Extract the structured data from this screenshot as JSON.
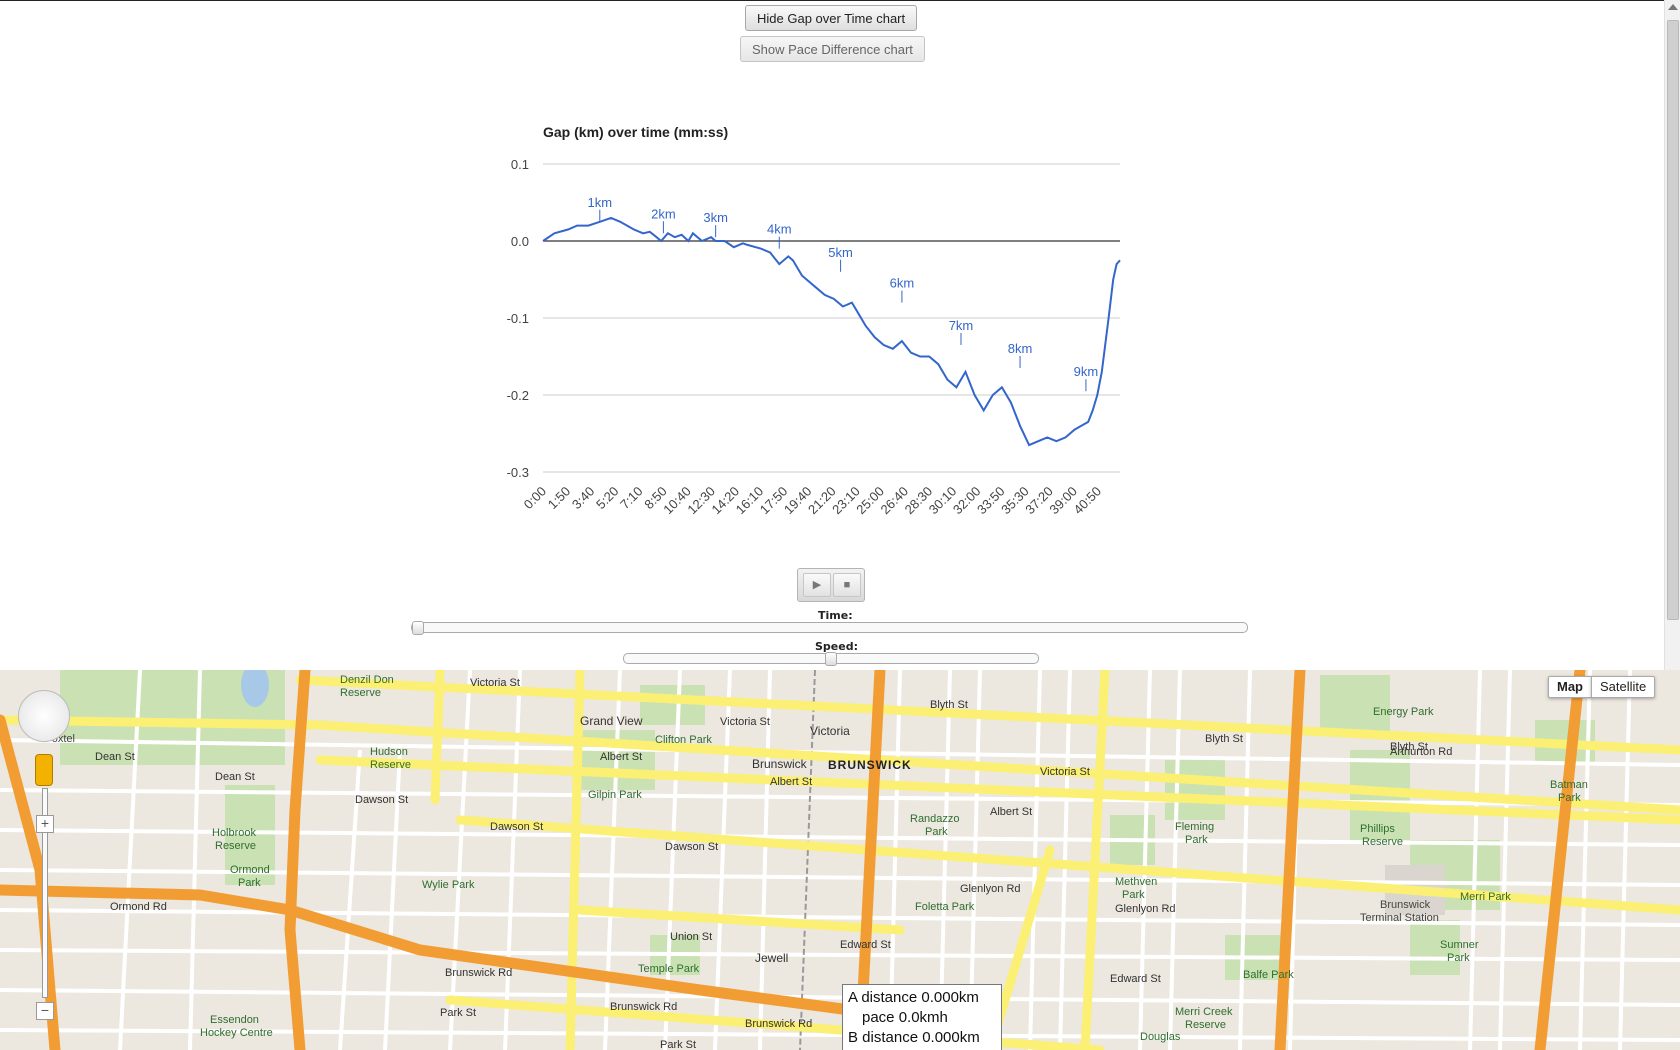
{
  "buttons": {
    "hide_gap": "Hide Gap over Time chart",
    "show_pace": "Show Pace Difference chart"
  },
  "chart_data": {
    "type": "line",
    "title": "Gap (km) over time (mm:ss)",
    "xlabel": "",
    "ylabel": "",
    "ylim": [
      -0.3,
      0.1
    ],
    "yticks": [
      "0.1",
      "0.0",
      "-0.1",
      "-0.2",
      "-0.3"
    ],
    "x_tick_labels": [
      "0:00",
      "1:50",
      "3:40",
      "5:20",
      "7:10",
      "8:50",
      "10:40",
      "12:30",
      "14:20",
      "16:10",
      "17:50",
      "19:40",
      "21:20",
      "23:10",
      "25:00",
      "26:40",
      "28:30",
      "30:10",
      "32:00",
      "33:50",
      "35:30",
      "37:20",
      "39:00",
      "40:50"
    ],
    "x_range_seconds": [
      0,
      2540
    ],
    "series": [
      {
        "x_seconds": [
          0,
          50,
          110,
          150,
          200,
          250,
          300,
          340,
          400,
          440,
          470,
          500,
          520,
          550,
          580,
          610,
          640,
          660,
          700,
          740,
          760,
          800,
          840,
          880,
          900,
          960,
          1000,
          1040,
          1080,
          1100,
          1140,
          1180,
          1200,
          1240,
          1280,
          1320,
          1360,
          1380,
          1420,
          1460,
          1500,
          1540,
          1580,
          1620,
          1660,
          1700,
          1740,
          1780,
          1820,
          1860,
          1900,
          1940,
          1980,
          2020,
          2060,
          2100,
          2140,
          2180,
          2220,
          2260,
          2300,
          2340,
          2370,
          2400,
          2420,
          2440,
          2460,
          2490,
          2510,
          2525,
          2540
        ],
        "y": [
          0.0,
          0.01,
          0.015,
          0.02,
          0.02,
          0.025,
          0.03,
          0.025,
          0.015,
          0.01,
          0.012,
          0.005,
          0.0,
          0.01,
          0.005,
          0.008,
          0.0,
          0.01,
          0.0,
          0.005,
          0.0,
          0.0,
          -0.008,
          -0.003,
          -0.005,
          -0.01,
          -0.015,
          -0.03,
          -0.02,
          -0.025,
          -0.045,
          -0.055,
          -0.06,
          -0.07,
          -0.075,
          -0.085,
          -0.08,
          -0.09,
          -0.11,
          -0.125,
          -0.135,
          -0.14,
          -0.13,
          -0.145,
          -0.15,
          -0.15,
          -0.16,
          -0.18,
          -0.19,
          -0.17,
          -0.2,
          -0.22,
          -0.2,
          -0.19,
          -0.21,
          -0.24,
          -0.265,
          -0.26,
          -0.255,
          -0.26,
          -0.255,
          -0.245,
          -0.24,
          -0.235,
          -0.22,
          -0.2,
          -0.17,
          -0.1,
          -0.05,
          -0.03,
          -0.025
        ]
      }
    ],
    "annotations": [
      {
        "label": "1km",
        "x_seconds": 250,
        "y": 0.025
      },
      {
        "label": "2km",
        "x_seconds": 530,
        "y": 0.01
      },
      {
        "label": "3km",
        "x_seconds": 760,
        "y": 0.005
      },
      {
        "label": "4km",
        "x_seconds": 1040,
        "y": -0.01
      },
      {
        "label": "5km",
        "x_seconds": 1310,
        "y": -0.04
      },
      {
        "label": "6km",
        "x_seconds": 1580,
        "y": -0.08
      },
      {
        "label": "7km",
        "x_seconds": 1840,
        "y": -0.135
      },
      {
        "label": "8km",
        "x_seconds": 2100,
        "y": -0.165
      },
      {
        "label": "9km",
        "x_seconds": 2390,
        "y": -0.195
      }
    ],
    "grid": true,
    "legend": "none"
  },
  "controls": {
    "play_icon": "▶",
    "stop_icon": "■",
    "time_label": "Time:",
    "time_value": 0,
    "speed_label": "Speed:",
    "speed_value": 0.5
  },
  "map": {
    "map_type_map": "Map",
    "map_type_satellite": "Satellite",
    "suburb": "BRUNSWICK",
    "tooltip": {
      "a_distance": "A distance 0.000km",
      "pace": "pace 0.0kmh",
      "b_distance": "B distance 0.000km"
    },
    "colors": {
      "land": "#ece7df",
      "park": "#cae2b3",
      "highway": "#f29d34",
      "major_road": "#fbf073",
      "minor_road": "#ffffff"
    }
  }
}
